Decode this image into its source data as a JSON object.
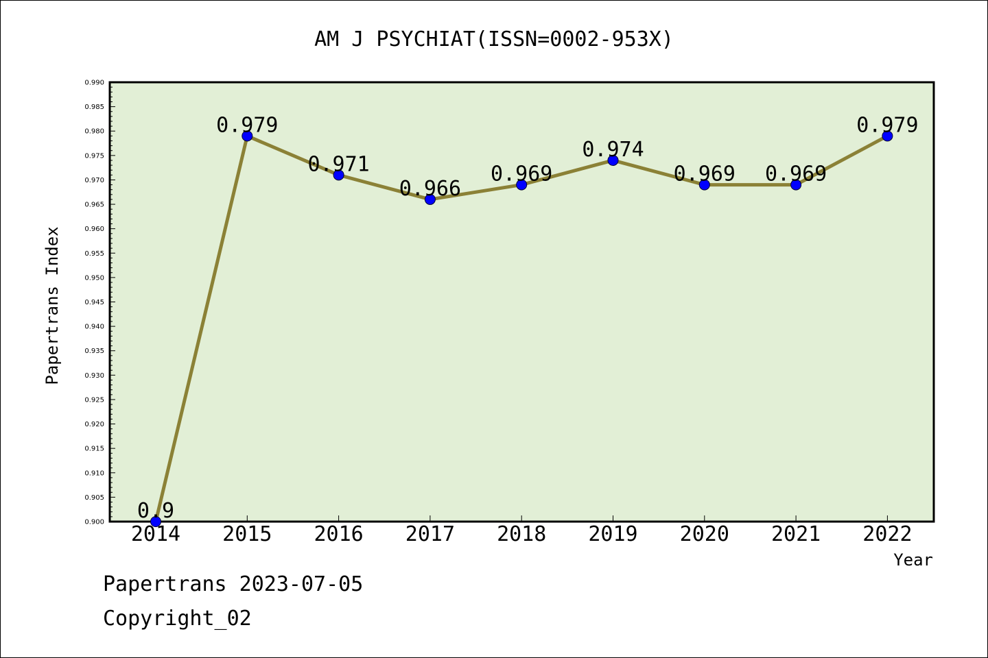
{
  "chart_data": {
    "type": "line",
    "title": "AM J PSYCHIAT(ISSN=0002-953X)",
    "xlabel": "Year",
    "ylabel": "Papertrans Index",
    "categories": [
      "2014",
      "2015",
      "2016",
      "2017",
      "2018",
      "2019",
      "2020",
      "2021",
      "2022"
    ],
    "series": [
      {
        "values": [
          0.9,
          0.979,
          0.971,
          0.966,
          0.969,
          0.974,
          0.969,
          0.969,
          0.979
        ],
        "labels": [
          "0.9",
          "0.979",
          "0.971",
          "0.966",
          "0.969",
          "0.974",
          "0.969",
          "0.969",
          "0.979"
        ]
      }
    ],
    "ylim": [
      0.9,
      0.99
    ],
    "yticks": [
      "0.900",
      "0.905",
      "0.910",
      "0.915",
      "0.920",
      "0.925",
      "0.930",
      "0.935",
      "0.940",
      "0.945",
      "0.950",
      "0.955",
      "0.960",
      "0.965",
      "0.970",
      "0.975",
      "0.980",
      "0.985",
      "0.990"
    ],
    "grid": false,
    "colors": {
      "plot_background": "#e2efd6",
      "line": "#8b8136",
      "marker": "#0000ff"
    }
  },
  "footer": {
    "source": "Papertrans 2023-07-05",
    "copyright": "Copyright_02"
  }
}
